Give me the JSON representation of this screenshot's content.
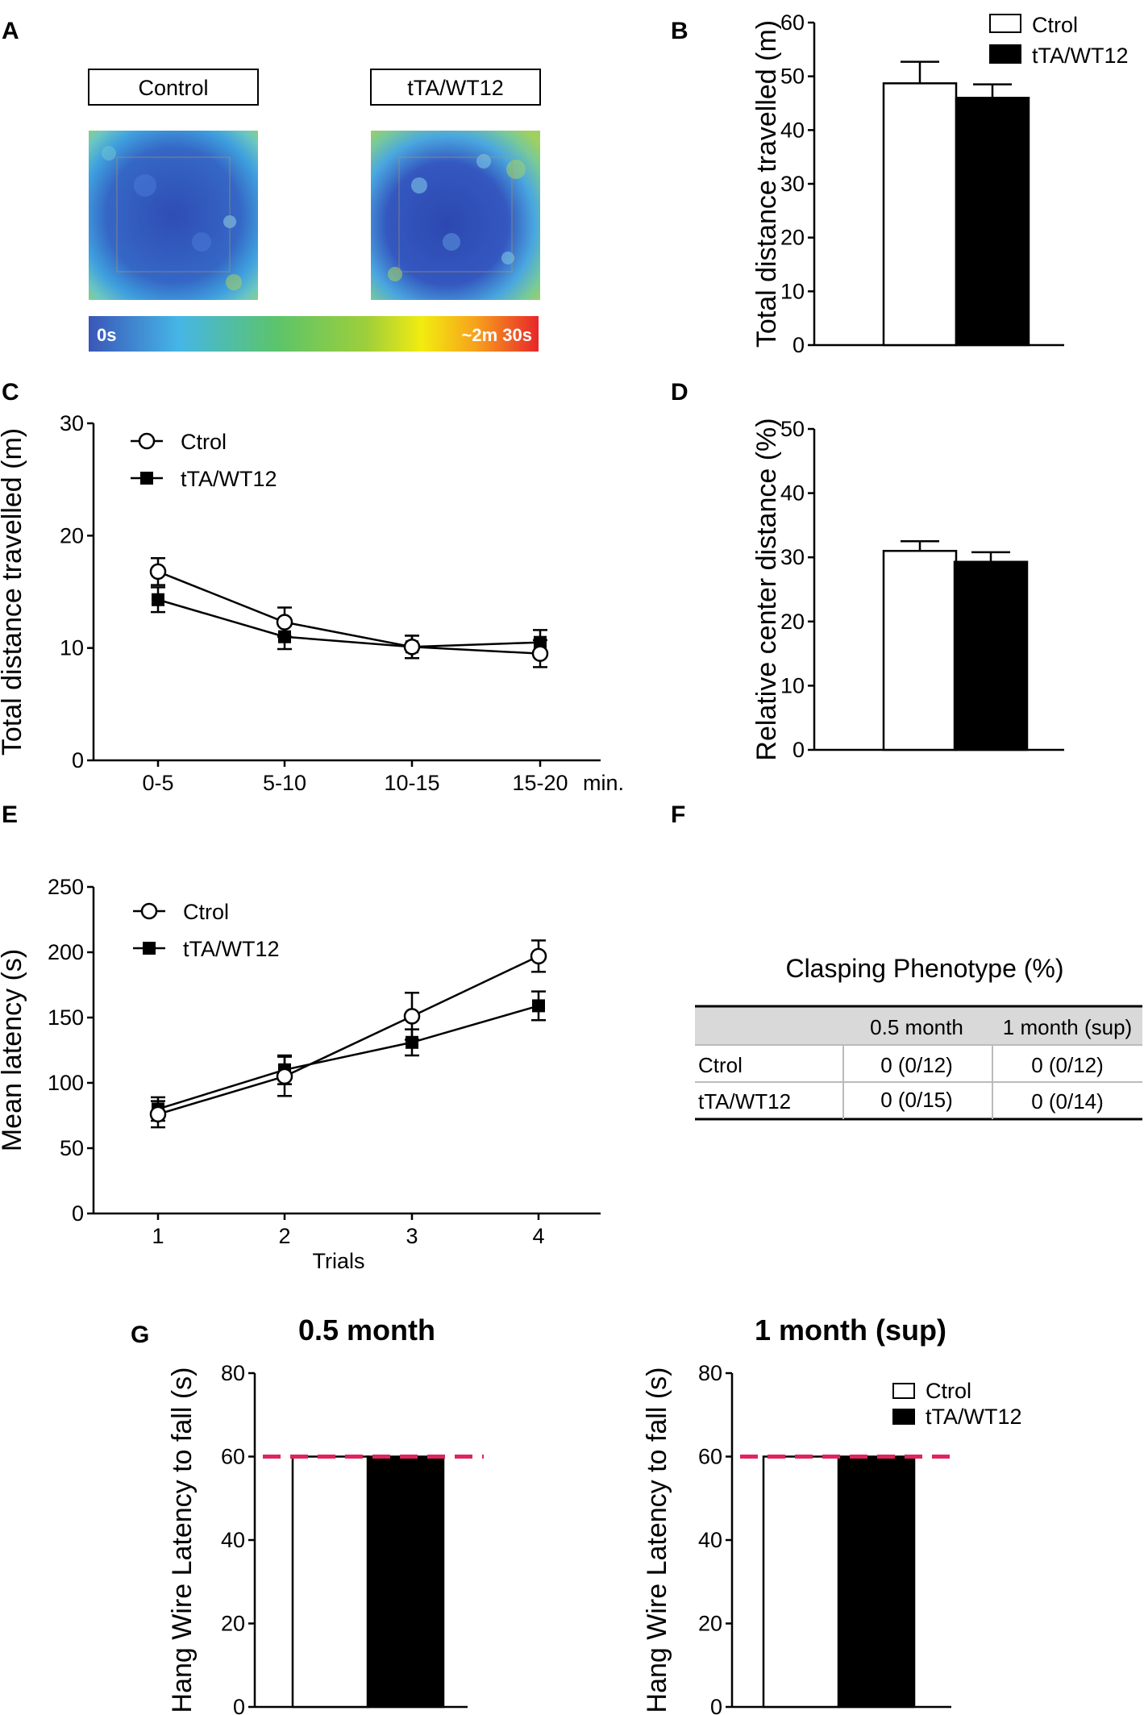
{
  "colors": {
    "ctrol_fill": "#ffffff",
    "twt_fill": "#000000",
    "ref_line": "#e0245e",
    "table_header": "#d9d9d9",
    "heat_low": "#3a56b8",
    "heat_high": "#e8262a"
  },
  "panel_labels": {
    "A": "A",
    "B": "B",
    "C": "C",
    "D": "D",
    "E": "E",
    "F": "F",
    "G": "G"
  },
  "panel_a": {
    "group_left": "Control",
    "group_right": "tTA/WT12",
    "scale_min": "0s",
    "scale_max": "~2m 30s"
  },
  "chart_data": [
    {
      "id": "B",
      "type": "bar",
      "categories": [
        "Ctrol",
        "tTA/WT12"
      ],
      "values": [
        48.7,
        46.0
      ],
      "errors": [
        4.0,
        2.5
      ],
      "ylabel": "Total distance travelled (m)",
      "xlabel": "",
      "ylim": [
        0,
        60
      ],
      "yticks": [
        "0",
        "10",
        "20",
        "30",
        "40",
        "50",
        "60"
      ],
      "legend": [
        "Ctrol",
        "tTA/WT12"
      ],
      "legend_position": "top-right"
    },
    {
      "id": "C",
      "type": "line",
      "categories": [
        "0-5",
        "5-10",
        "10-15",
        "15-20"
      ],
      "x_unit": "min.",
      "series": [
        {
          "name": "Ctrol",
          "marker": "open-circle",
          "values": [
            16.8,
            12.3,
            10.1,
            9.5
          ],
          "errors": [
            1.2,
            1.3,
            1.0,
            1.2
          ]
        },
        {
          "name": "tTA/WT12",
          "marker": "filled-square",
          "values": [
            14.3,
            11.0,
            10.1,
            10.5
          ],
          "errors": [
            1.1,
            1.1,
            1.0,
            1.1
          ]
        }
      ],
      "ylabel": "Total distance travelled (m)",
      "ylim": [
        0,
        30
      ],
      "yticks": [
        "0",
        "10",
        "20",
        "30"
      ],
      "legend_position": "top-left"
    },
    {
      "id": "D",
      "type": "bar",
      "categories": [
        "Ctrol",
        "tTA/WT12"
      ],
      "values": [
        31.0,
        29.3
      ],
      "errors": [
        1.5,
        1.5
      ],
      "ylabel": "Relative center distance (%)",
      "ylim": [
        0,
        50
      ],
      "yticks": [
        "0",
        "10",
        "20",
        "30",
        "40",
        "50"
      ]
    },
    {
      "id": "E",
      "type": "line",
      "categories": [
        "1",
        "2",
        "3",
        "4"
      ],
      "xlabel": "Trials",
      "series": [
        {
          "name": "Ctrol",
          "marker": "open-circle",
          "values": [
            76,
            105,
            151,
            197
          ],
          "errors": [
            10,
            15,
            18,
            12
          ]
        },
        {
          "name": "tTA/WT12",
          "marker": "filled-square",
          "values": [
            80,
            110,
            131,
            159
          ],
          "errors": [
            9,
            11,
            10,
            11
          ]
        }
      ],
      "ylabel": "Mean latency (s)",
      "ylim": [
        0,
        250
      ],
      "yticks": [
        "0",
        "50",
        "100",
        "150",
        "200",
        "250"
      ],
      "legend_position": "top-left"
    },
    {
      "id": "F",
      "type": "table",
      "title": "Clasping Phenotype (%)",
      "columns": [
        "",
        "0.5 month",
        "1 month (sup)"
      ],
      "rows": [
        [
          "Ctrol",
          "0 (0/12)",
          "0 (0/12)"
        ],
        [
          "tTA/WT12",
          "0 (0/15)",
          "0 (0/14)"
        ]
      ]
    },
    {
      "id": "G1",
      "type": "bar",
      "title": "0.5 month",
      "categories": [
        "Ctrol",
        "tTA/WT12"
      ],
      "values": [
        60,
        60
      ],
      "reference_line": 60,
      "ylabel": "Hang Wire Latency to fall (s)",
      "ylim": [
        0,
        80
      ],
      "yticks": [
        "0",
        "20",
        "40",
        "60",
        "80"
      ]
    },
    {
      "id": "G2",
      "type": "bar",
      "title": "1 month (sup)",
      "categories": [
        "Ctrol",
        "tTA/WT12"
      ],
      "values": [
        60,
        60
      ],
      "reference_line": 60,
      "ylabel": "Hang Wire Latency to fall (s)",
      "ylim": [
        0,
        80
      ],
      "yticks": [
        "0",
        "20",
        "40",
        "60",
        "80"
      ],
      "legend": [
        "Ctrol",
        "tTA/WT12"
      ],
      "legend_position": "top-right"
    }
  ]
}
